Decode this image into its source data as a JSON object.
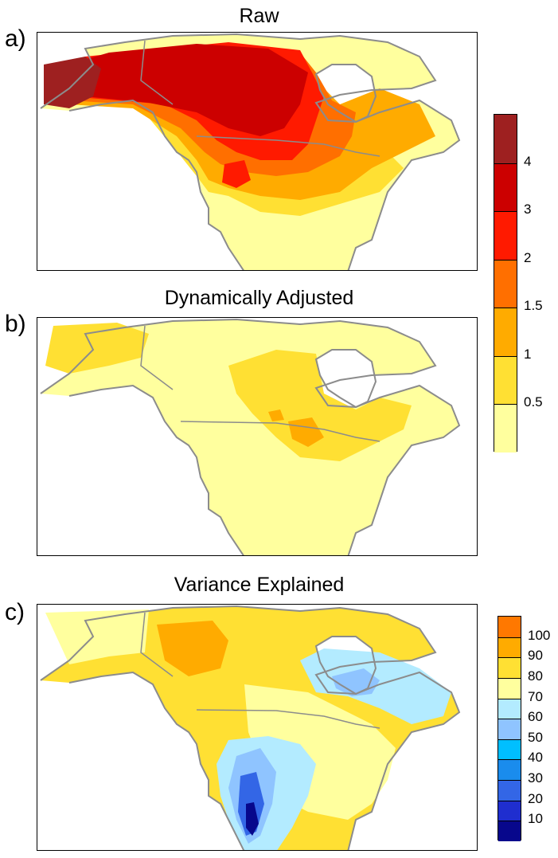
{
  "panels": [
    {
      "letter": "a)",
      "title": "Raw"
    },
    {
      "letter": "b)",
      "title": "Dynamically Adjusted"
    },
    {
      "letter": "c)",
      "title": "Variance Explained"
    }
  ],
  "colorbar_warm": {
    "tick_labels": [
      "0.5",
      "1",
      "1.5",
      "2",
      "3",
      "4"
    ],
    "colors": [
      "#ffff9e",
      "#ffe033",
      "#ffab00",
      "#ff6f00",
      "#ff1a00",
      "#cc0000",
      "#9e2020"
    ]
  },
  "colorbar_variance": {
    "tick_labels": [
      "10",
      "20",
      "30",
      "40",
      "50",
      "60",
      "70",
      "80",
      "90",
      "100"
    ],
    "colors": [
      "#07078c",
      "#1f2ecf",
      "#3366e6",
      "#1a8ced",
      "#00bfff",
      "#8fc4ff",
      "#b3ebff",
      "#ffff9e",
      "#ffe033",
      "#ffab00",
      "#ff7800"
    ]
  },
  "map_colors": {
    "land_boundary": "#8c8c8c",
    "ocean": "#ffffff"
  }
}
